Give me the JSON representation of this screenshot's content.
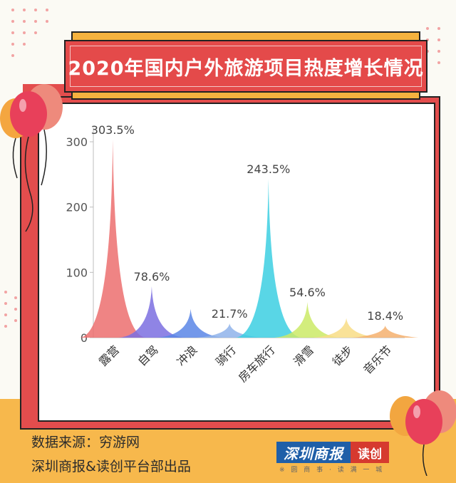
{
  "title": "2020年国内户外旅游项目热度增长情况",
  "chart_data": {
    "type": "area",
    "title": "2020年国内户外旅游项目热度增长情况",
    "xlabel": "",
    "ylabel": "",
    "ylim": [
      0,
      300
    ],
    "yticks": [
      0,
      100,
      200,
      300
    ],
    "grid": false,
    "categories": [
      "露营",
      "自驾",
      "冲浪",
      "骑行",
      "房车旅行",
      "滑雪",
      "徒步",
      "音乐节"
    ],
    "values": [
      303.5,
      78.6,
      44,
      21.7,
      243.5,
      54.6,
      30,
      18.4
    ],
    "data_labels": [
      "303.5%",
      "78.6%",
      "",
      "21.7%",
      "243.5%",
      "54.6%",
      "",
      "18.4%"
    ],
    "colors": [
      "#ec6f6f",
      "#7b6fe0",
      "#5b86e6",
      "#8fb3ea",
      "#3ccfe2",
      "#cbea66",
      "#f8dd86",
      "#f4b06e"
    ]
  },
  "footer": {
    "source": "数据来源：穷游网",
    "credit": "深圳商报&读创平台部出品"
  },
  "logo": {
    "name": "深圳商报",
    "tag": "读创",
    "slogan": "※ 圆 商 事 · 读 满 一 城"
  }
}
